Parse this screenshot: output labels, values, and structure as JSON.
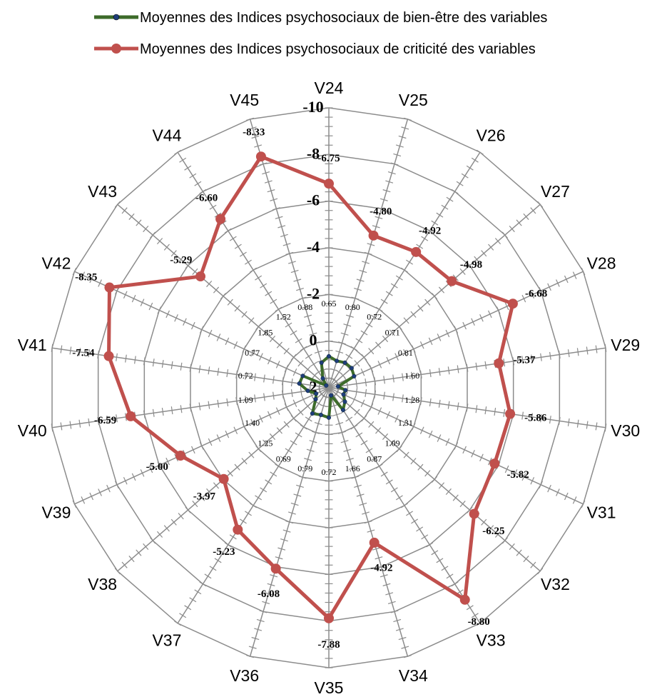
{
  "chart_data": {
    "type": "radar",
    "categories": [
      "V24",
      "V25",
      "V26",
      "V27",
      "V28",
      "V29",
      "V30",
      "V31",
      "V32",
      "V33",
      "V34",
      "V35",
      "V36",
      "V37",
      "V38",
      "V39",
      "V40",
      "V41",
      "V42",
      "V43",
      "V44",
      "V45"
    ],
    "series": [
      {
        "name": "Moyennes des Indices psychosociaux de bien-être des variables",
        "color": "#3d6b2a",
        "marker_color": "#1f3f7a",
        "values": [
          0.65,
          0.8,
          0.72,
          0.71,
          0.81,
          1.6,
          1.28,
          1.31,
          1.09,
          0.87,
          1.66,
          0.72,
          0.79,
          0.69,
          1.25,
          1.4,
          1.09,
          0.72,
          0.77,
          1.85,
          1.52,
          0.88
        ],
        "labels": [
          "0.65",
          "0.80",
          "0.72",
          "0.71",
          "0.81",
          "1.60",
          "1.28",
          "1.31",
          "1.09",
          "0.87",
          "1.66",
          "0.72",
          "0.79",
          "0.69",
          "1.25",
          "1.40",
          "1.09",
          "0.72",
          "0.77",
          "1.85",
          "1.52",
          "0.88"
        ]
      },
      {
        "name": "Moyennes des Indices psychosociaux de criticité des variables",
        "color": "#c0504d",
        "marker_color": "#c0504d",
        "values": [
          -6.75,
          -4.8,
          -4.92,
          -4.98,
          -6.68,
          -5.37,
          -5.86,
          -5.82,
          -6.25,
          -8.8,
          -4.92,
          -7.88,
          -6.08,
          -5.23,
          -3.97,
          -5.0,
          -6.59,
          -7.54,
          -8.35,
          -5.29,
          -6.6,
          -8.33
        ],
        "labels": [
          "-6.75",
          "-4.80",
          "-4.92",
          "-4.98",
          "-6.68",
          "-5.37",
          "-5.86",
          "-5.82",
          "-6.25",
          "-8.80",
          "-4.92",
          "-7.88",
          "-6.08",
          "-5.23",
          "-3.97",
          "-5.00",
          "-6.59",
          "-7.54",
          "-8.35",
          "-5.29",
          "-6.60",
          "-8.33"
        ]
      }
    ],
    "axis": {
      "reversed": true,
      "range": [
        2,
        -10
      ],
      "major_step": 2,
      "tick_labels": [
        "2",
        "0",
        "-2",
        "-4",
        "-6",
        "-8",
        "-10"
      ]
    },
    "grid": true,
    "legend_position": "top"
  }
}
